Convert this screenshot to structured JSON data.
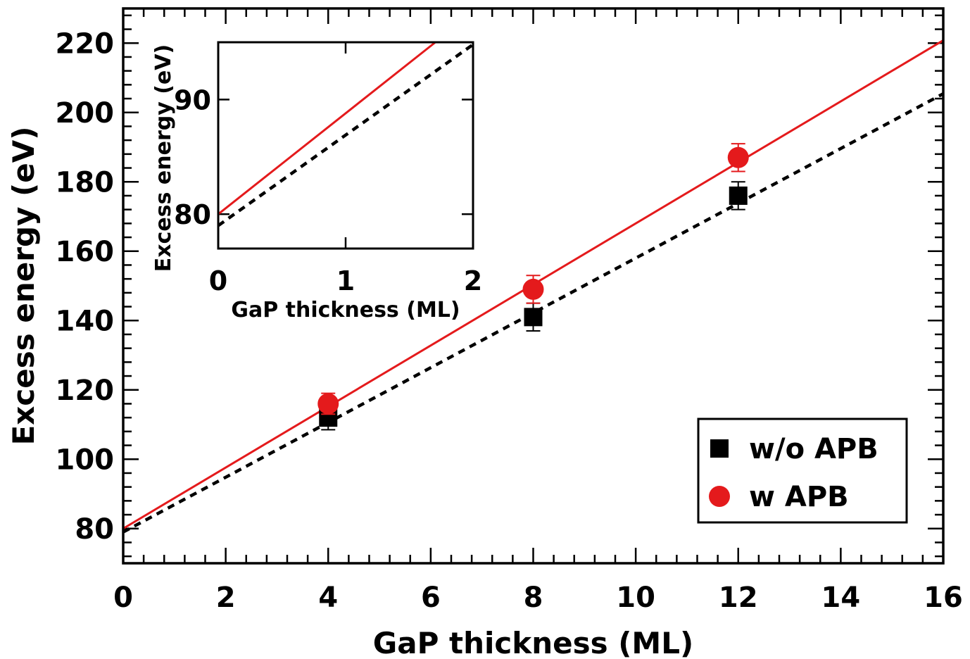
{
  "chart_data": {
    "type": "scatter",
    "xlabel": "GaP thickness (ML)",
    "ylabel": "Excess energy (eV)",
    "xlim": [
      0,
      16
    ],
    "ylim": [
      70,
      230
    ],
    "xticks": [
      0,
      2,
      4,
      6,
      8,
      10,
      12,
      14,
      16
    ],
    "yticks": [
      80,
      100,
      120,
      140,
      160,
      180,
      200,
      220
    ],
    "grid": false,
    "legend_position": "bottom-right",
    "series": [
      {
        "name": "w/o APB",
        "marker": "square",
        "color": "#000000",
        "x": [
          4,
          8,
          12
        ],
        "y": [
          112,
          141,
          176
        ],
        "err": [
          3.5,
          4,
          4
        ],
        "fit": {
          "style": "dashed",
          "color": "#000000",
          "intercept": 79,
          "slope": 7.9
        }
      },
      {
        "name": "w APB",
        "marker": "circle",
        "color": "#e41a1c",
        "x": [
          4,
          8,
          12
        ],
        "y": [
          116,
          149,
          187
        ],
        "err": [
          3,
          4,
          4
        ],
        "fit": {
          "style": "solid",
          "color": "#e41a1c",
          "intercept": 80,
          "slope": 8.8
        }
      }
    ],
    "inset": {
      "xlabel": "GaP thickness (ML)",
      "ylabel": "Excess energy (eV)",
      "xlim": [
        0,
        2
      ],
      "ylim": [
        77,
        95
      ],
      "xticks": [
        0,
        1,
        2
      ],
      "yticks": [
        80,
        90
      ]
    }
  }
}
